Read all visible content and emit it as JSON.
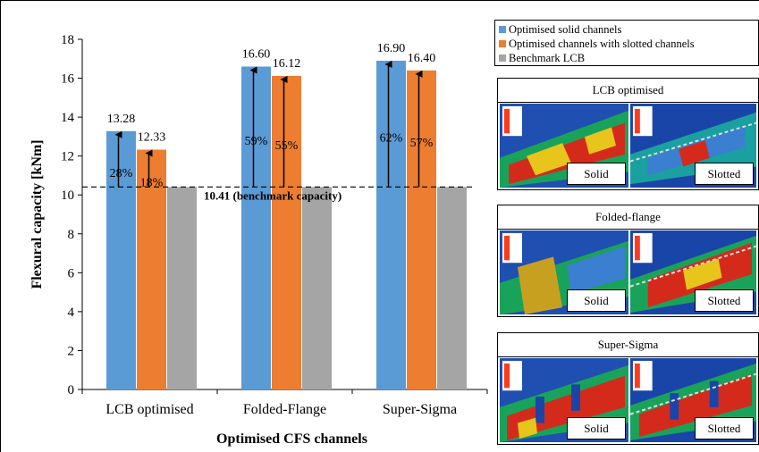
{
  "chart_data": {
    "type": "bar",
    "ylabel": "Flexural capacity [kNm]",
    "xlabel": "Optimised CFS channels",
    "ylim": [
      0,
      18
    ],
    "yticks": [
      "0",
      "2",
      "4",
      "6",
      "8",
      "10",
      "12",
      "14",
      "16",
      "18"
    ],
    "categories": [
      "LCB optimised",
      "Folded-Flange",
      "Super-Sigma"
    ],
    "series": [
      {
        "name": "Optimised solid channels",
        "color": "#5b9bd5",
        "values": [
          13.28,
          16.6,
          16.9
        ],
        "labels": [
          "13.28",
          "16.60",
          "16.90"
        ],
        "improvements": [
          "28%",
          "59%",
          "62%"
        ]
      },
      {
        "name": "Optimised channels with slotted channels",
        "color": "#ed7d31",
        "values": [
          12.33,
          16.12,
          16.4
        ],
        "labels": [
          "12.33",
          "16.12",
          "16.40"
        ],
        "improvements": [
          "18%",
          "55%",
          "57%"
        ]
      },
      {
        "name": "Benchmark LCB",
        "color": "#a5a5a5",
        "values": [
          10.41,
          10.41,
          10.41
        ],
        "labels": [
          null,
          null,
          null
        ],
        "improvements": [
          null,
          null,
          null
        ]
      }
    ],
    "benchmark": {
      "value": 10.41,
      "label": "10.41 (benchmark capacity)"
    },
    "legend": "top-right",
    "grid": false
  },
  "panels": [
    {
      "title": "LCB optimised",
      "left_label": "Solid",
      "right_label": "Slotted"
    },
    {
      "title": "Folded-flange",
      "left_label": "Solid",
      "right_label": "Slotted"
    },
    {
      "title": "Super-Sigma",
      "left_label": "Solid",
      "right_label": "Slotted"
    }
  ]
}
